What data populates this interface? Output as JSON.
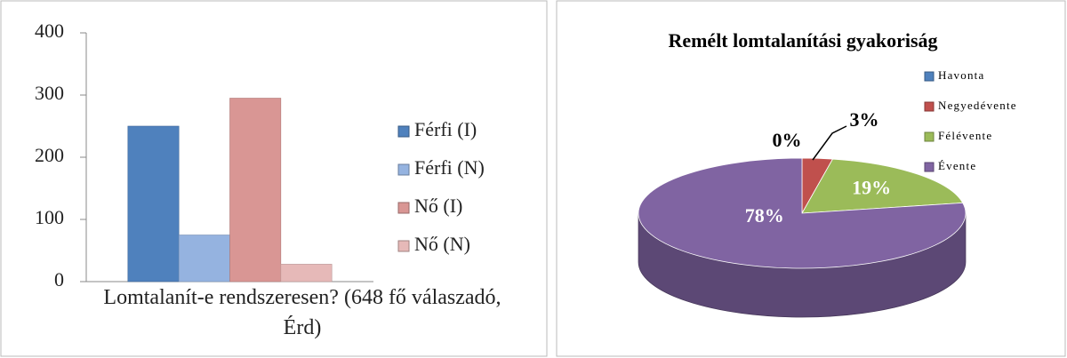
{
  "chart_data": [
    {
      "type": "bar",
      "categories": [
        "Lomtalanít-e rendszeresen? (648 fő válaszadó, Érd)"
      ],
      "series": [
        {
          "name": "Férfi (I)",
          "color": "#4f81bd",
          "values": [
            250
          ]
        },
        {
          "name": "Férfi (N)",
          "color": "#95b3e0",
          "values": [
            75
          ]
        },
        {
          "name": "Nő (I)",
          "color": "#d99694",
          "values": [
            295
          ]
        },
        {
          "name": "Nő (N)",
          "color": "#e6b9b8",
          "values": [
            28
          ]
        }
      ],
      "ylim": [
        0,
        400
      ],
      "yticks": [
        0,
        100,
        200,
        300,
        400
      ],
      "grid": false,
      "legend": "right"
    },
    {
      "type": "pie",
      "title": "Remélt lomtalanítási gyakoriság",
      "categories": [
        "Havonta",
        "Negyedévente",
        "Félévente",
        "Évente"
      ],
      "values": [
        0,
        3,
        19,
        78
      ],
      "value_labels": [
        "0%",
        "3%",
        "19%",
        "78%"
      ],
      "colors": [
        "#4f81bd",
        "#c0504d",
        "#9bbb59",
        "#8064a2"
      ],
      "legend": "right"
    }
  ]
}
